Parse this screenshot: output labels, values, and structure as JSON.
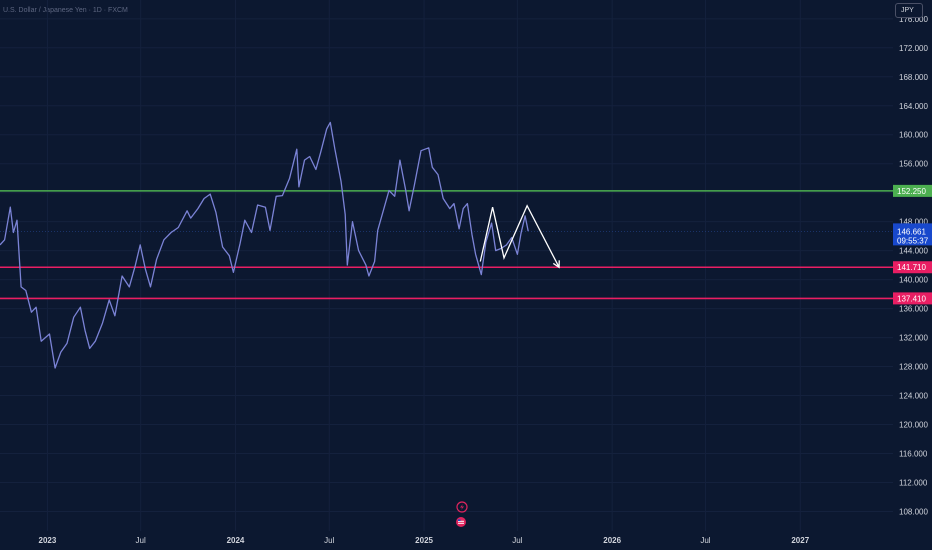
{
  "header": {
    "symbol_line": "U.S. Dollar / Japanese Yen · 1D · FXCM"
  },
  "currency_button": {
    "label": "JPY"
  },
  "colors": {
    "background": "#0c1830",
    "price_line": "#7b83d6",
    "support_upper": "#4caf50",
    "support_mid": "#e91e63",
    "support_low": "#e91e63",
    "current_price": "#1848cc",
    "projection": "#ffffff",
    "text": "#d1d4dc"
  },
  "chart_data": {
    "type": "line",
    "title": "",
    "xlabel": "",
    "ylabel": "",
    "ylim": [
      105.3,
      178.6
    ],
    "xlim": [
      "2022-10-01",
      "2027-06-30"
    ],
    "y_ticks": [
      176,
      172,
      168,
      164,
      160,
      156,
      152,
      148,
      144,
      140,
      136,
      132,
      128,
      124,
      120,
      116,
      112,
      108
    ],
    "y_tick_labels": [
      "176.000",
      "172.000",
      "168.000",
      "164.000",
      "160.000",
      "156.000",
      "152.000",
      "148.000",
      "144.000",
      "140.000",
      "136.000",
      "132.000",
      "128.000",
      "124.000",
      "120.000",
      "116.000",
      "112.000",
      "108.000"
    ],
    "x_ticks": [
      {
        "date": "2023-01-01",
        "label": "2023",
        "bold": true
      },
      {
        "date": "2023-07-01",
        "label": "Jul",
        "bold": false
      },
      {
        "date": "2024-01-01",
        "label": "2024",
        "bold": true
      },
      {
        "date": "2024-07-01",
        "label": "Jul",
        "bold": false
      },
      {
        "date": "2025-01-01",
        "label": "2025",
        "bold": true
      },
      {
        "date": "2025-07-01",
        "label": "Jul",
        "bold": false
      },
      {
        "date": "2026-01-01",
        "label": "2026",
        "bold": true
      },
      {
        "date": "2026-07-01",
        "label": "Jul",
        "bold": false
      },
      {
        "date": "2027-01-01",
        "label": "2027",
        "bold": true
      }
    ],
    "series": [
      {
        "points": [
          [
            "2022-10-01",
            144.8
          ],
          [
            "2022-10-10",
            145.5
          ],
          [
            "2022-10-21",
            150.0
          ],
          [
            "2022-10-27",
            146.5
          ],
          [
            "2022-11-03",
            148.2
          ],
          [
            "2022-11-11",
            139.0
          ],
          [
            "2022-11-20",
            138.5
          ],
          [
            "2022-12-01",
            135.5
          ],
          [
            "2022-12-10",
            136.2
          ],
          [
            "2022-12-20",
            131.5
          ],
          [
            "2023-01-05",
            132.5
          ],
          [
            "2023-01-16",
            127.8
          ],
          [
            "2023-01-27",
            130.0
          ],
          [
            "2023-02-08",
            131.2
          ],
          [
            "2023-02-21",
            134.8
          ],
          [
            "2023-03-06",
            136.2
          ],
          [
            "2023-03-15",
            133.0
          ],
          [
            "2023-03-24",
            130.5
          ],
          [
            "2023-04-04",
            131.5
          ],
          [
            "2023-04-18",
            134.0
          ],
          [
            "2023-05-01",
            137.2
          ],
          [
            "2023-05-12",
            135.0
          ],
          [
            "2023-05-26",
            140.5
          ],
          [
            "2023-06-09",
            139.0
          ],
          [
            "2023-06-20",
            141.8
          ],
          [
            "2023-06-30",
            144.8
          ],
          [
            "2023-07-10",
            141.5
          ],
          [
            "2023-07-20",
            139.0
          ],
          [
            "2023-08-01",
            142.8
          ],
          [
            "2023-08-15",
            145.5
          ],
          [
            "2023-08-29",
            146.5
          ],
          [
            "2023-09-12",
            147.2
          ],
          [
            "2023-09-29",
            149.5
          ],
          [
            "2023-10-06",
            148.5
          ],
          [
            "2023-10-20",
            149.8
          ],
          [
            "2023-11-01",
            151.2
          ],
          [
            "2023-11-13",
            151.8
          ],
          [
            "2023-11-24",
            149.3
          ],
          [
            "2023-12-07",
            144.5
          ],
          [
            "2023-12-20",
            143.3
          ],
          [
            "2023-12-28",
            141.0
          ],
          [
            "2024-01-10",
            145.0
          ],
          [
            "2024-01-19",
            148.2
          ],
          [
            "2024-02-01",
            146.5
          ],
          [
            "2024-02-13",
            150.3
          ],
          [
            "2024-02-28",
            150.0
          ],
          [
            "2024-03-08",
            146.8
          ],
          [
            "2024-03-20",
            151.5
          ],
          [
            "2024-04-01",
            151.6
          ],
          [
            "2024-04-15",
            154.0
          ],
          [
            "2024-04-29",
            158.0
          ],
          [
            "2024-05-03",
            152.8
          ],
          [
            "2024-05-14",
            156.5
          ],
          [
            "2024-05-24",
            157.0
          ],
          [
            "2024-06-05",
            155.2
          ],
          [
            "2024-06-14",
            157.5
          ],
          [
            "2024-06-26",
            160.8
          ],
          [
            "2024-07-03",
            161.7
          ],
          [
            "2024-07-12",
            158.0
          ],
          [
            "2024-07-24",
            153.5
          ],
          [
            "2024-08-01",
            149.0
          ],
          [
            "2024-08-05",
            142.0
          ],
          [
            "2024-08-15",
            148.0
          ],
          [
            "2024-08-27",
            144.0
          ],
          [
            "2024-09-10",
            142.0
          ],
          [
            "2024-09-16",
            140.5
          ],
          [
            "2024-09-27",
            142.5
          ],
          [
            "2024-10-03",
            146.8
          ],
          [
            "2024-10-15",
            149.8
          ],
          [
            "2024-10-25",
            152.3
          ],
          [
            "2024-11-05",
            151.5
          ],
          [
            "2024-11-15",
            156.5
          ],
          [
            "2024-11-26",
            152.5
          ],
          [
            "2024-12-03",
            149.5
          ],
          [
            "2024-12-13",
            153.0
          ],
          [
            "2024-12-26",
            157.8
          ],
          [
            "2025-01-10",
            158.2
          ],
          [
            "2025-01-17",
            155.5
          ],
          [
            "2025-01-28",
            154.5
          ],
          [
            "2025-02-07",
            151.2
          ],
          [
            "2025-02-20",
            149.8
          ],
          [
            "2025-02-28",
            150.5
          ],
          [
            "2025-03-10",
            147.0
          ],
          [
            "2025-03-18",
            149.8
          ],
          [
            "2025-03-26",
            150.5
          ],
          [
            "2025-04-04",
            146.2
          ],
          [
            "2025-04-11",
            143.5
          ],
          [
            "2025-04-22",
            140.7
          ],
          [
            "2025-05-01",
            145.2
          ],
          [
            "2025-05-12",
            147.8
          ],
          [
            "2025-05-20",
            144.0
          ],
          [
            "2025-05-30",
            144.3
          ],
          [
            "2025-06-10",
            144.8
          ],
          [
            "2025-06-20",
            145.8
          ],
          [
            "2025-07-01",
            143.5
          ],
          [
            "2025-07-08",
            146.4
          ],
          [
            "2025-07-16",
            148.8
          ],
          [
            "2025-07-22",
            146.7
          ]
        ]
      }
    ],
    "levels": [
      {
        "name": "green-level",
        "value": 152.25,
        "label": "152.250",
        "color": "#4caf50"
      },
      {
        "name": "red-level-upper",
        "value": 141.71,
        "label": "141.710",
        "color": "#e91e63"
      },
      {
        "name": "red-level-lower",
        "value": 137.41,
        "label": "137.410",
        "color": "#e91e63"
      }
    ],
    "current_price": {
      "value": 146.661,
      "label": "146.661",
      "countdown": "09:55:37",
      "color": "#1848cc"
    },
    "projection": {
      "points": [
        [
          "2025-04-20",
          142.5
        ],
        [
          "2025-05-14",
          150.0
        ],
        [
          "2025-06-05",
          143.0
        ],
        [
          "2025-07-20",
          150.2
        ],
        [
          "2025-09-20",
          141.7
        ]
      ],
      "color": "#ffffff"
    }
  }
}
